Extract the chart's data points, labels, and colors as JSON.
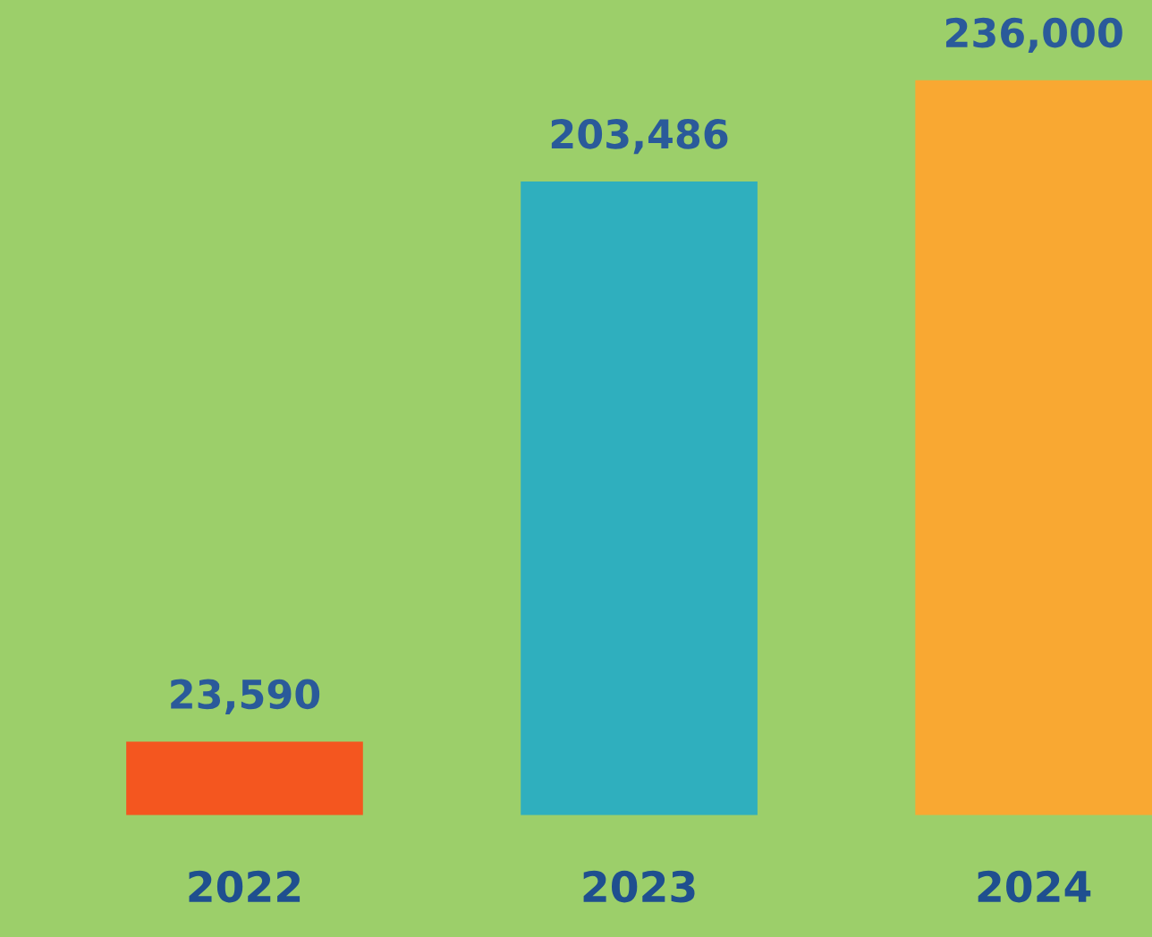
{
  "chart_data": {
    "type": "bar",
    "categories": [
      "2022",
      "2023",
      "2024"
    ],
    "values": [
      23590,
      203486,
      236000
    ],
    "colors": [
      "#f4561f",
      "#2fafbe",
      "#f9a832"
    ],
    "data_labels": true,
    "value_labels": [
      "23,590",
      "203,486",
      "236,000"
    ],
    "grid": false,
    "legend": false
  }
}
